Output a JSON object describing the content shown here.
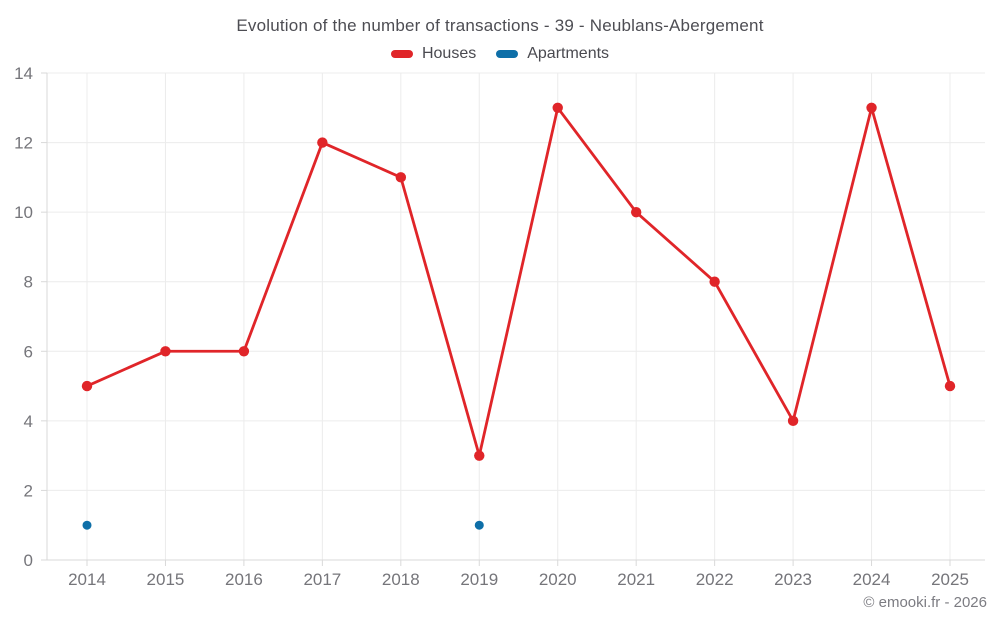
{
  "header": {
    "title": "Evolution of the number of transactions - 39 - Neublans-Abergement"
  },
  "footer": {
    "credit": "© emooki.fr - 2026"
  },
  "chart_data": {
    "type": "line",
    "title": "Evolution of the number of transactions - 39 - Neublans-Abergement",
    "categories": [
      "2014",
      "2015",
      "2016",
      "2017",
      "2018",
      "2019",
      "2020",
      "2021",
      "2022",
      "2023",
      "2024",
      "2025"
    ],
    "series": [
      {
        "name": "Houses",
        "color": "#e02529",
        "values": [
          5,
          6,
          6,
          12,
          11,
          3,
          13,
          10,
          8,
          4,
          13,
          5
        ],
        "marker_radius": 5.2,
        "line_width": 2.8,
        "draw_line": true
      },
      {
        "name": "Apartments",
        "color": "#0e6fa8",
        "values": [
          1,
          null,
          null,
          null,
          null,
          1,
          null,
          null,
          null,
          null,
          null,
          null
        ],
        "marker_radius": 4.5,
        "line_width": 2.8,
        "draw_line": true
      }
    ],
    "xlabel": "",
    "ylabel": "",
    "ylim": [
      0,
      14
    ],
    "ytick_step": 2,
    "yticks": [
      0,
      2,
      4,
      6,
      8,
      10,
      12,
      14
    ],
    "grid": true,
    "legend_position": "top",
    "colors": {
      "grid": "#ececec",
      "axis": "#d9d9d9",
      "tick_label": "#75757a"
    }
  }
}
